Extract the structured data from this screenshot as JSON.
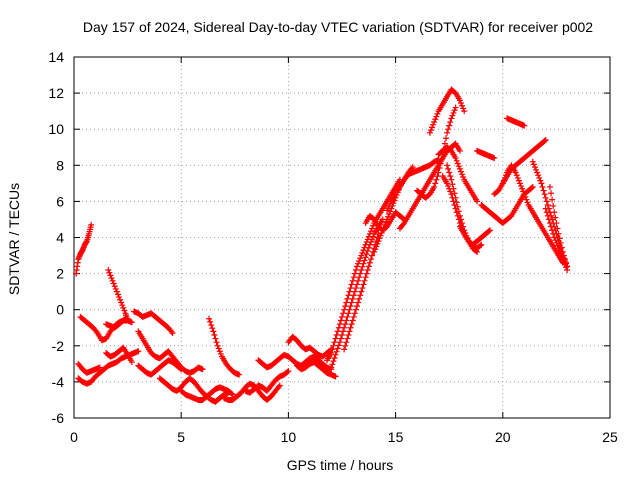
{
  "chart_data": {
    "type": "scatter",
    "title": "Day 157 of 2024, Sidereal Day-to-day VTEC variation (SDTVAR) for receiver p002",
    "xlabel": "GPS time / hours",
    "ylabel": "SDTVAR / TECUs",
    "xlim": [
      0,
      25
    ],
    "ylim": [
      -6,
      14
    ],
    "xticks": [
      0,
      5,
      10,
      15,
      20,
      25
    ],
    "yticks": [
      -6,
      -4,
      -2,
      0,
      2,
      4,
      6,
      8,
      10,
      12,
      14
    ],
    "grid": true,
    "marker": "plus",
    "color": "#ff0000",
    "series": [
      {
        "x": [
          0.1,
          0.2,
          0.3,
          0.4,
          0.5,
          0.6,
          0.7,
          0.8
        ],
        "y": [
          2.0,
          2.8,
          3.1,
          3.3,
          3.6,
          3.8,
          4.2,
          4.7
        ]
      },
      {
        "x": [
          0.2,
          0.4,
          0.6,
          0.8,
          1.0,
          1.2
        ],
        "y": [
          -3.0,
          -3.3,
          -3.5,
          -3.4,
          -3.3,
          -3.2
        ]
      },
      {
        "x": [
          0.2,
          0.4,
          0.6,
          0.8,
          1.0,
          1.2,
          1.4,
          1.6,
          1.8,
          2.0,
          2.2,
          2.4,
          2.6,
          2.8,
          3.0
        ],
        "y": [
          -3.8,
          -4.0,
          -4.1,
          -4.0,
          -3.7,
          -3.5,
          -3.3,
          -3.1,
          -3.0,
          -2.9,
          -2.7,
          -2.6,
          -2.5,
          -2.4,
          -2.3
        ]
      },
      {
        "x": [
          0.3,
          0.5,
          0.7,
          0.9,
          1.1,
          1.3,
          1.5,
          1.7,
          1.9,
          2.1,
          2.3,
          2.5,
          2.7
        ],
        "y": [
          -0.4,
          -0.6,
          -0.8,
          -1.0,
          -1.3,
          -1.7,
          -1.6,
          -1.2,
          -0.9,
          -0.7,
          -0.6,
          -0.6,
          -0.7
        ]
      },
      {
        "x": [
          1.5,
          1.7,
          1.9,
          2.1,
          2.3,
          2.5,
          2.7
        ],
        "y": [
          -2.4,
          -2.6,
          -2.5,
          -2.3,
          -2.1,
          -2.5,
          -2.9
        ]
      },
      {
        "x": [
          1.6,
          1.8,
          2.0,
          2.2,
          2.4,
          2.5
        ],
        "y": [
          2.2,
          1.6,
          1.0,
          0.4,
          -0.2,
          -0.6
        ]
      },
      {
        "x": [
          1.5,
          1.7,
          1.9,
          2.1,
          2.3,
          2.5
        ],
        "y": [
          -0.8,
          -0.9,
          -1.0,
          -0.8,
          -0.6,
          -0.5
        ]
      },
      {
        "x": [
          2.8,
          3.0,
          3.2,
          3.4,
          3.6,
          3.8,
          4.0,
          4.2,
          4.4,
          4.6
        ],
        "y": [
          -0.1,
          -0.2,
          -0.4,
          -0.3,
          -0.2,
          -0.4,
          -0.6,
          -0.8,
          -1.0,
          -1.3
        ]
      },
      {
        "x": [
          3.0,
          3.2,
          3.4,
          3.6,
          3.8,
          4.0,
          4.2,
          4.4,
          4.6,
          4.8,
          5.0,
          5.2,
          5.4,
          5.6,
          5.8,
          6.0
        ],
        "y": [
          -1.2,
          -1.6,
          -2.0,
          -2.4,
          -2.6,
          -2.7,
          -2.5,
          -2.3,
          -2.6,
          -2.9,
          -3.2,
          -3.4,
          -3.5,
          -3.4,
          -3.2,
          -3.3
        ]
      },
      {
        "x": [
          3.0,
          3.2,
          3.4,
          3.6,
          3.8,
          4.0,
          4.2,
          4.4,
          4.6,
          4.8,
          5.0
        ],
        "y": [
          -3.1,
          -3.3,
          -3.5,
          -3.6,
          -3.4,
          -3.2,
          -3.0,
          -2.8,
          -2.9,
          -3.1,
          -3.3
        ]
      },
      {
        "x": [
          4.0,
          4.2,
          4.4,
          4.6,
          4.8,
          5.0,
          5.2,
          5.4,
          5.6,
          5.8,
          6.0,
          6.2,
          6.4,
          6.6,
          6.8,
          7.0,
          7.2
        ],
        "y": [
          -3.8,
          -4.0,
          -4.2,
          -4.4,
          -4.5,
          -4.3,
          -4.0,
          -3.8,
          -4.0,
          -4.3,
          -4.6,
          -4.8,
          -5.0,
          -5.1,
          -4.9,
          -4.7,
          -4.6
        ]
      },
      {
        "x": [
          5.0,
          5.2,
          5.4,
          5.6,
          5.8,
          6.0,
          6.2,
          6.4,
          6.6,
          6.8,
          7.0,
          7.2,
          7.4
        ],
        "y": [
          -4.5,
          -4.7,
          -4.8,
          -4.9,
          -5.0,
          -5.0,
          -4.8,
          -4.6,
          -4.4,
          -4.3,
          -4.4,
          -4.5,
          -4.7
        ]
      },
      {
        "x": [
          6.3,
          6.5,
          6.7,
          6.9,
          7.1,
          7.3,
          7.5,
          7.7
        ],
        "y": [
          -0.5,
          -1.2,
          -2.0,
          -2.6,
          -3.0,
          -3.3,
          -3.5,
          -3.6
        ]
      },
      {
        "x": [
          7.0,
          7.2,
          7.4,
          7.6,
          7.8,
          8.0,
          8.2,
          8.4,
          8.6,
          8.8,
          9.0,
          9.2,
          9.4,
          9.6
        ],
        "y": [
          -4.9,
          -5.0,
          -5.0,
          -4.8,
          -4.6,
          -4.3,
          -4.1,
          -4.2,
          -4.5,
          -4.8,
          -5.0,
          -4.8,
          -4.5,
          -4.2
        ]
      },
      {
        "x": [
          8.0,
          8.2,
          8.4,
          8.6,
          8.8,
          9.0,
          9.2,
          9.4,
          9.6,
          9.8,
          10.0
        ],
        "y": [
          -4.5,
          -4.6,
          -4.4,
          -4.2,
          -4.3,
          -4.5,
          -4.2,
          -3.9,
          -3.7,
          -3.6,
          -3.4
        ]
      },
      {
        "x": [
          8.6,
          8.8,
          9.0,
          9.2,
          9.4,
          9.6,
          9.8,
          10.0,
          10.2,
          10.4,
          10.6,
          10.8,
          11.0,
          11.2,
          11.4,
          11.6,
          11.8,
          12.0
        ],
        "y": [
          -2.8,
          -3.0,
          -3.2,
          -3.1,
          -2.9,
          -2.7,
          -2.5,
          -2.6,
          -2.8,
          -3.0,
          -3.1,
          -2.9,
          -2.7,
          -2.6,
          -2.8,
          -3.0,
          -3.2,
          -3.3
        ]
      },
      {
        "x": [
          10.0,
          10.2,
          10.4,
          10.6,
          10.8,
          11.0,
          11.2,
          11.4,
          11.6,
          11.8,
          12.0
        ],
        "y": [
          -1.8,
          -1.5,
          -1.7,
          -2.0,
          -2.2,
          -2.1,
          -2.3,
          -2.5,
          -2.6,
          -2.4,
          -2.2
        ]
      },
      {
        "x": [
          10.4,
          10.6,
          10.8,
          11.0,
          11.2,
          11.4,
          11.6,
          11.8,
          12.0,
          12.2
        ],
        "y": [
          -3.1,
          -3.3,
          -3.2,
          -3.0,
          -2.9,
          -3.1,
          -3.3,
          -3.5,
          -3.6,
          -3.7
        ]
      },
      {
        "x": [
          11.8,
          12.0,
          12.2,
          12.4,
          12.6,
          12.8,
          13.0,
          13.2,
          13.4,
          13.6,
          13.8,
          14.0,
          14.2,
          14.4,
          14.6,
          14.8,
          15.0,
          15.2
        ],
        "y": [
          -2.8,
          -2.4,
          -1.6,
          -0.8,
          0.0,
          0.8,
          1.6,
          2.4,
          3.0,
          3.6,
          4.2,
          4.8,
          5.2,
          5.6,
          6.0,
          6.4,
          6.8,
          7.2
        ]
      },
      {
        "x": [
          12.0,
          12.2,
          12.4,
          12.6,
          12.8,
          13.0,
          13.2,
          13.4,
          13.6,
          13.8,
          14.0,
          14.2,
          14.4
        ],
        "y": [
          -3.2,
          -2.5,
          -1.8,
          -1.0,
          -0.2,
          0.6,
          1.4,
          2.2,
          2.9,
          3.6,
          4.2,
          4.6,
          5.0
        ]
      },
      {
        "x": [
          12.6,
          12.8,
          13.0,
          13.2,
          13.4,
          13.6,
          13.8,
          14.0,
          14.2
        ],
        "y": [
          -2.2,
          -1.4,
          -0.6,
          0.2,
          1.0,
          1.8,
          2.6,
          3.4,
          4.2
        ]
      },
      {
        "x": [
          13.6,
          13.8,
          14.0,
          14.2,
          14.4,
          14.6,
          14.8,
          15.0,
          15.2,
          15.4
        ],
        "y": [
          4.8,
          5.2,
          5.0,
          4.6,
          4.4,
          4.6,
          5.0,
          5.4,
          5.2,
          5.0
        ]
      },
      {
        "x": [
          14.0,
          14.2,
          14.4,
          14.6,
          14.8,
          15.0,
          15.2,
          15.4,
          15.6,
          15.8
        ],
        "y": [
          3.2,
          3.8,
          4.4,
          5.0,
          5.6,
          6.2,
          6.8,
          7.2,
          7.6,
          7.9
        ]
      },
      {
        "x": [
          14.6,
          14.8,
          15.0,
          15.2,
          15.4,
          15.6,
          15.8,
          16.0,
          16.2,
          16.4,
          16.6,
          16.8,
          17.0
        ],
        "y": [
          5.5,
          6.0,
          6.4,
          6.8,
          7.2,
          7.5,
          7.6,
          7.7,
          7.8,
          7.9,
          8.0,
          8.2,
          8.3
        ]
      },
      {
        "x": [
          15.2,
          15.4,
          15.6,
          15.8,
          16.0,
          16.2,
          16.4,
          16.6,
          16.8,
          17.0,
          17.2,
          17.4,
          17.6,
          17.8,
          18.0
        ],
        "y": [
          4.5,
          4.8,
          5.2,
          5.6,
          6.0,
          6.4,
          6.8,
          7.2,
          7.6,
          8.0,
          8.4,
          8.8,
          9.0,
          9.2,
          8.8
        ]
      },
      {
        "x": [
          16.0,
          16.2,
          16.4,
          16.6,
          16.8,
          17.0,
          17.2,
          17.4,
          17.6,
          17.8
        ],
        "y": [
          6.6,
          6.4,
          6.2,
          6.4,
          6.8,
          7.6,
          8.6,
          9.8,
          10.6,
          11.2
        ]
      },
      {
        "x": [
          16.6,
          16.8,
          17.0,
          17.2,
          17.4,
          17.6,
          17.8,
          18.0,
          18.2
        ],
        "y": [
          9.8,
          10.4,
          11.0,
          11.4,
          11.8,
          12.2,
          12.0,
          11.6,
          11.0
        ]
      },
      {
        "x": [
          17.0,
          17.2,
          17.4,
          17.6,
          17.8,
          18.0,
          18.2,
          18.4,
          18.6,
          18.8
        ],
        "y": [
          8.6,
          8.8,
          9.0,
          8.8,
          8.4,
          7.8,
          7.2,
          6.8,
          6.4,
          6.0
        ]
      },
      {
        "x": [
          17.2,
          17.4,
          17.6,
          17.8,
          18.0,
          18.2,
          18.4,
          18.6,
          18.8,
          19.0
        ],
        "y": [
          7.4,
          7.0,
          6.4,
          5.6,
          4.8,
          4.2,
          3.8,
          3.6,
          3.4,
          3.6
        ]
      },
      {
        "x": [
          17.4,
          17.6,
          17.8,
          18.0,
          18.2,
          18.4,
          18.6,
          18.8
        ],
        "y": [
          8.0,
          7.2,
          6.2,
          5.2,
          4.4,
          3.8,
          3.4,
          3.2
        ]
      },
      {
        "x": [
          18.0,
          18.2,
          18.4,
          18.6,
          18.8,
          19.0,
          19.2,
          19.4
        ],
        "y": [
          4.6,
          4.2,
          3.8,
          3.6,
          3.8,
          4.0,
          4.2,
          4.4
        ]
      },
      {
        "x": [
          18.8,
          19.0,
          19.2,
          19.4,
          19.6
        ],
        "y": [
          8.8,
          8.7,
          8.6,
          8.5,
          8.4
        ]
      },
      {
        "x": [
          19.0,
          19.2,
          19.4,
          19.6,
          19.8,
          20.0,
          20.2,
          20.4,
          20.6,
          20.8,
          21.0,
          21.2,
          21.4
        ],
        "y": [
          5.8,
          5.6,
          5.4,
          5.2,
          5.0,
          4.8,
          5.0,
          5.2,
          5.6,
          6.0,
          6.4,
          6.6,
          6.8
        ]
      },
      {
        "x": [
          19.6,
          19.8,
          20.0,
          20.2,
          20.4,
          20.6,
          20.8,
          21.0,
          21.2,
          21.4,
          21.6,
          21.8,
          22.0
        ],
        "y": [
          6.4,
          6.6,
          7.0,
          7.4,
          7.8,
          8.0,
          8.2,
          8.4,
          8.6,
          8.8,
          9.0,
          9.2,
          9.4
        ]
      },
      {
        "x": [
          20.2,
          20.4,
          20.6,
          20.8,
          21.0
        ],
        "y": [
          10.6,
          10.5,
          10.4,
          10.3,
          10.2
        ]
      },
      {
        "x": [
          20.0,
          20.2,
          20.4,
          20.6,
          20.8,
          21.0,
          21.2,
          21.4,
          21.6,
          21.8,
          22.0,
          22.2,
          22.4,
          22.6,
          22.8
        ],
        "y": [
          7.0,
          7.6,
          8.0,
          7.6,
          7.0,
          6.4,
          5.8,
          5.4,
          5.0,
          4.6,
          4.2,
          3.8,
          3.4,
          3.0,
          2.6
        ]
      },
      {
        "x": [
          21.4,
          21.6,
          21.8,
          22.0,
          22.2,
          22.4,
          22.6,
          22.8,
          23.0
        ],
        "y": [
          8.2,
          7.6,
          7.0,
          6.2,
          5.4,
          4.6,
          3.8,
          3.0,
          2.4
        ]
      },
      {
        "x": [
          22.0,
          22.2,
          22.4,
          22.6,
          22.8,
          23.0
        ],
        "y": [
          5.6,
          4.8,
          4.0,
          3.4,
          2.8,
          2.2
        ]
      },
      {
        "x": [
          22.2,
          22.4,
          22.6,
          22.8,
          23.0
        ],
        "y": [
          6.8,
          5.4,
          4.2,
          3.2,
          2.4
        ]
      }
    ]
  }
}
